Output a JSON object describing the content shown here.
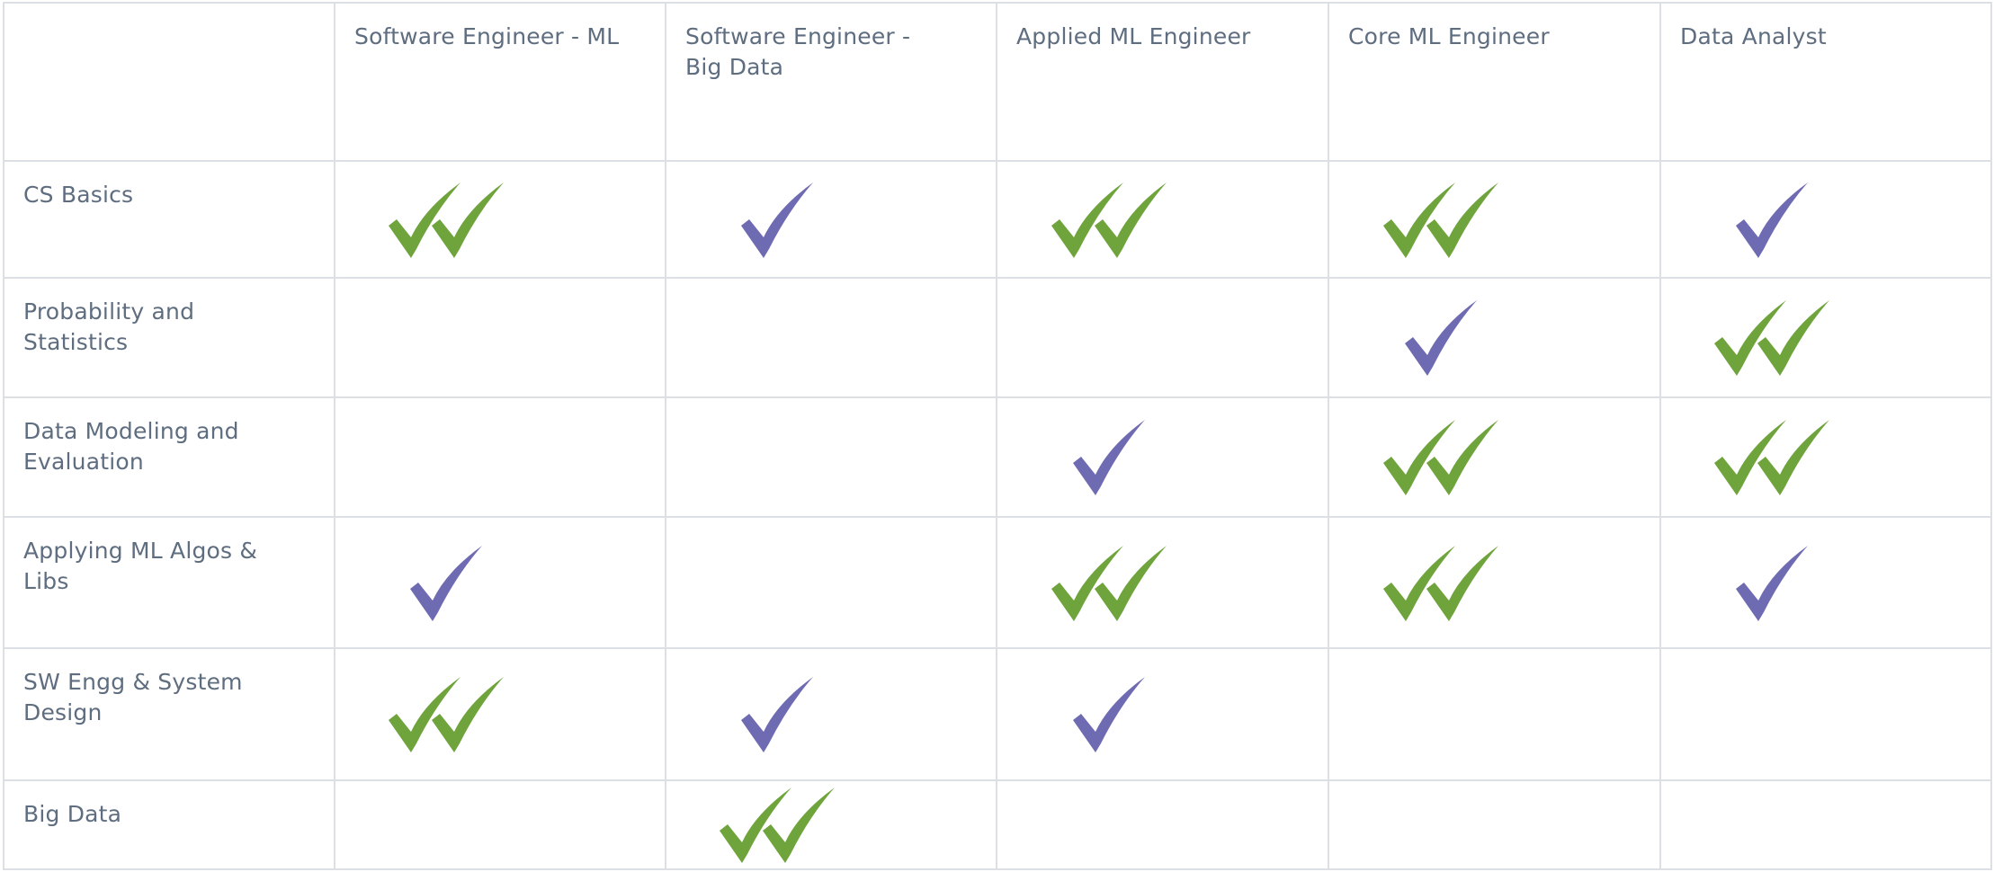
{
  "colors": {
    "double_check": "#6fa43c",
    "single_check": "#6f6bb3",
    "grid_line": "#dcdfe3",
    "text": "#5e6d7f"
  },
  "columns": [
    "Software Engineer - ML",
    "Software Engineer - Big Data",
    "Applied ML Engineer",
    "Core ML Engineer",
    "Data Analyst"
  ],
  "rows": [
    {
      "label": "CS Basics",
      "marks": [
        "double-check-icon",
        "single-check-icon",
        "double-check-icon",
        "double-check-icon",
        "single-check-icon"
      ]
    },
    {
      "label": "Probability and Statistics",
      "marks": [
        "",
        "",
        "",
        "single-check-icon",
        "double-check-icon"
      ]
    },
    {
      "label": "Data Modeling and Evaluation",
      "marks": [
        "",
        "",
        "single-check-icon",
        "double-check-icon",
        "double-check-icon"
      ]
    },
    {
      "label": "Applying ML Algos & Libs",
      "marks": [
        "single-check-icon",
        "",
        "double-check-icon",
        "double-check-icon",
        "single-check-icon"
      ]
    },
    {
      "label": "SW Engg & System Design",
      "marks": [
        "double-check-icon",
        "single-check-icon",
        "single-check-icon",
        "",
        ""
      ]
    },
    {
      "label": "Big Data",
      "marks": [
        "",
        "double-check-icon",
        "",
        "",
        ""
      ]
    }
  ]
}
